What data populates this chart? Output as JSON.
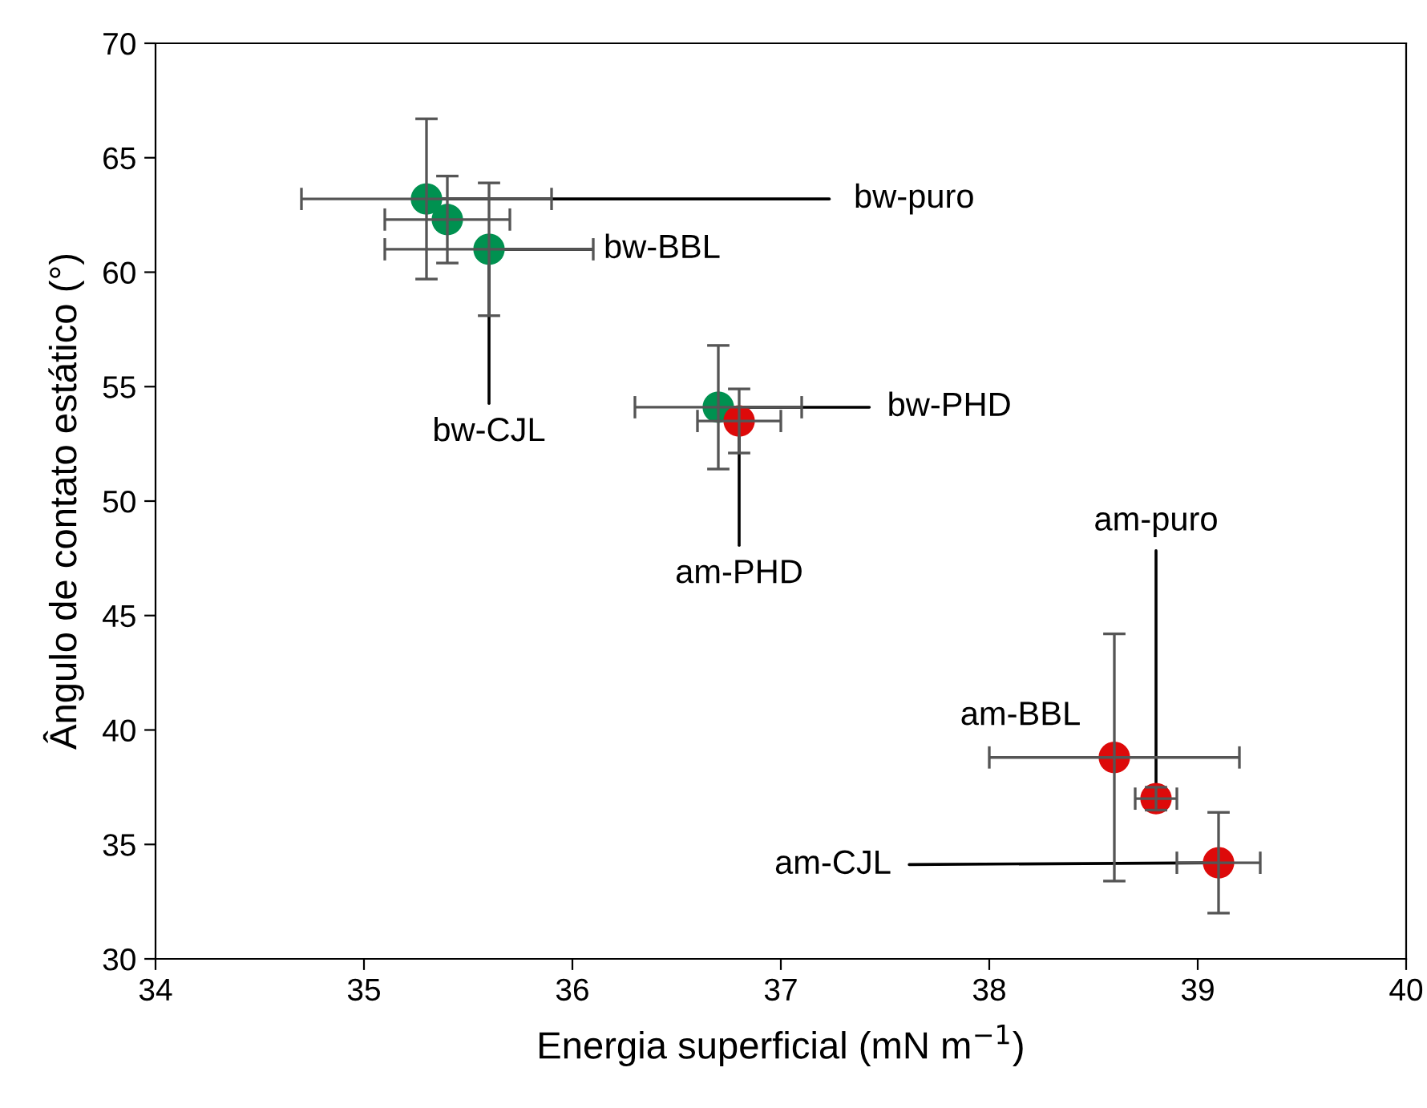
{
  "chart_data": {
    "type": "scatter",
    "xlabel": "Energia superficial (mN m$^{−1}$)",
    "ylabel": "Ângulo de contato estático (°)",
    "xlim": [
      34,
      40
    ],
    "ylim": [
      30,
      70
    ],
    "xticks": [
      34,
      35,
      36,
      37,
      38,
      39,
      40
    ],
    "yticks": [
      30,
      35,
      40,
      45,
      50,
      55,
      60,
      65,
      70
    ],
    "grid": false,
    "legend": false,
    "marker": "circle",
    "series": [
      {
        "color": "#009150",
        "x": [
          35.3,
          35.4,
          35.6,
          36.7
        ],
        "values": [
          63.2,
          62.3,
          61.0,
          54.1
        ],
        "errors": [
          3.5,
          1.9,
          2.9,
          2.7
        ],
        "xerrors": [
          0.6,
          0.3,
          0.5,
          0.4
        ]
      },
      {
        "color": "#dd0a0a",
        "x": [
          36.8,
          38.6,
          38.8,
          39.1
        ],
        "values": [
          53.5,
          38.8,
          37.0,
          34.2
        ],
        "errors": [
          1.4,
          5.4,
          0.5,
          2.2
        ],
        "xerrors": [
          0.2,
          0.6,
          0.1,
          0.2
        ]
      }
    ],
    "annotations": [
      {
        "text": "bw-puro",
        "x": 35.3,
        "y": 63.2
      },
      {
        "text": "bw-BBL",
        "x": 35.6,
        "y": 61.0
      },
      {
        "text": "bw-CJL",
        "x": 35.6,
        "y": 61.0
      },
      {
        "text": "bw-PHD",
        "x": 36.7,
        "y": 54.1
      },
      {
        "text": "am-PHD",
        "x": 36.8,
        "y": 53.5
      },
      {
        "text": "am-puro",
        "x": 38.8,
        "y": 37.0
      },
      {
        "text": "am-BBL",
        "x": 38.6,
        "y": 38.8
      },
      {
        "text": "am-CJL",
        "x": 39.1,
        "y": 34.2
      }
    ]
  }
}
